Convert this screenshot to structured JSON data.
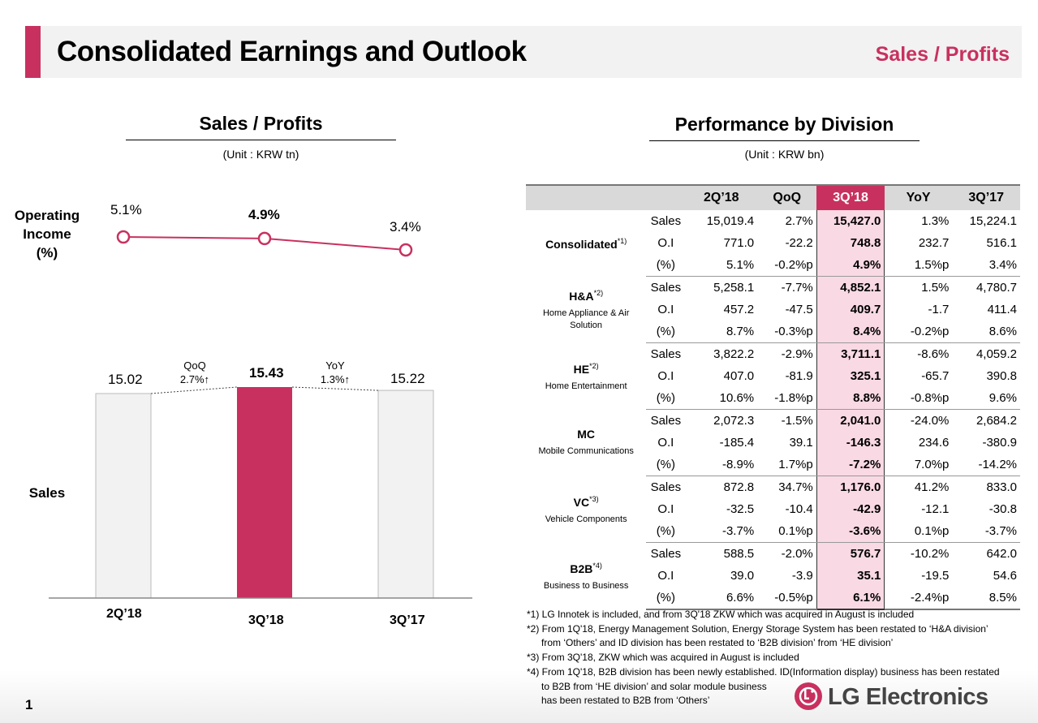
{
  "header": {
    "title": "Consolidated Earnings and Outlook",
    "section": "Sales / Profits"
  },
  "left": {
    "heading": "Sales / Profits",
    "unit": "(Unit : KRW tn)",
    "oi_label": [
      "Operating",
      "Income",
      "(%)"
    ],
    "sales_label": "Sales",
    "annotations": {
      "qoq_label": "QoQ",
      "qoq_value": "2.7%↑",
      "yoy_label": "YoY",
      "yoy_value": "1.3%↑"
    }
  },
  "chart_data": {
    "type": "bar",
    "categories": [
      "2Q’18",
      "3Q’18",
      "3Q’17"
    ],
    "series": [
      {
        "name": "Sales",
        "values": [
          15.02,
          15.43,
          15.22
        ],
        "labels": [
          "15.02",
          "15.43",
          "15.22"
        ],
        "unit": "KRW tn"
      },
      {
        "name": "Operating Income (%)",
        "type": "line",
        "values": [
          5.1,
          4.9,
          3.4
        ],
        "labels": [
          "5.1%",
          "4.9%",
          "3.4%"
        ]
      }
    ],
    "highlight_index": 1,
    "colors": {
      "highlight": "#c8315f",
      "base": "#f2f2f2",
      "line": "#c8315f"
    }
  },
  "right": {
    "heading": "Performance by Division",
    "unit": "(Unit : KRW bn)",
    "columns": [
      "2Q’18",
      "QoQ",
      "3Q’18",
      "YoY",
      "3Q’17"
    ],
    "divisions": [
      {
        "name": "Consolidated",
        "note": "*1)",
        "sub": "",
        "rows": [
          {
            "metric": "Sales",
            "values": [
              "15,019.4",
              "2.7%",
              "15,427.0",
              "1.3%",
              "15,224.1"
            ]
          },
          {
            "metric": "O.I",
            "values": [
              "771.0",
              "-22.2",
              "748.8",
              "232.7",
              "516.1"
            ]
          },
          {
            "metric": "(%)",
            "values": [
              "5.1%",
              "-0.2%p",
              "4.9%",
              "1.5%p",
              "3.4%"
            ]
          }
        ]
      },
      {
        "name": "H&A",
        "note": "*2)",
        "sub": "Home Appliance & Air Solution",
        "rows": [
          {
            "metric": "Sales",
            "values": [
              "5,258.1",
              "-7.7%",
              "4,852.1",
              "1.5%",
              "4,780.7"
            ]
          },
          {
            "metric": "O.I",
            "values": [
              "457.2",
              "-47.5",
              "409.7",
              "-1.7",
              "411.4"
            ]
          },
          {
            "metric": "(%)",
            "values": [
              "8.7%",
              "-0.3%p",
              "8.4%",
              "-0.2%p",
              "8.6%"
            ]
          }
        ]
      },
      {
        "name": "HE",
        "note": "*2)",
        "sub": "Home Entertainment",
        "rows": [
          {
            "metric": "Sales",
            "values": [
              "3,822.2",
              "-2.9%",
              "3,711.1",
              "-8.6%",
              "4,059.2"
            ]
          },
          {
            "metric": "O.I",
            "values": [
              "407.0",
              "-81.9",
              "325.1",
              "-65.7",
              "390.8"
            ]
          },
          {
            "metric": "(%)",
            "values": [
              "10.6%",
              "-1.8%p",
              "8.8%",
              "-0.8%p",
              "9.6%"
            ]
          }
        ]
      },
      {
        "name": "MC",
        "note": "",
        "sub": "Mobile Communications",
        "rows": [
          {
            "metric": "Sales",
            "values": [
              "2,072.3",
              "-1.5%",
              "2,041.0",
              "-24.0%",
              "2,684.2"
            ]
          },
          {
            "metric": "O.I",
            "values": [
              "-185.4",
              "39.1",
              "-146.3",
              "234.6",
              "-380.9"
            ]
          },
          {
            "metric": "(%)",
            "values": [
              "-8.9%",
              "1.7%p",
              "-7.2%",
              "7.0%p",
              "-14.2%"
            ]
          }
        ]
      },
      {
        "name": "VC",
        "note": "*3)",
        "sub": "Vehicle Components",
        "rows": [
          {
            "metric": "Sales",
            "values": [
              "872.8",
              "34.7%",
              "1,176.0",
              "41.2%",
              "833.0"
            ]
          },
          {
            "metric": "O.I",
            "values": [
              "-32.5",
              "-10.4",
              "-42.9",
              "-12.1",
              "-30.8"
            ]
          },
          {
            "metric": "(%)",
            "values": [
              "-3.7%",
              "0.1%p",
              "-3.6%",
              "0.1%p",
              "-3.7%"
            ]
          }
        ]
      },
      {
        "name": "B2B",
        "note": "*4)",
        "sub": "Business to Business",
        "rows": [
          {
            "metric": "Sales",
            "values": [
              "588.5",
              "-2.0%",
              "576.7",
              "-10.2%",
              "642.0"
            ]
          },
          {
            "metric": "O.I",
            "values": [
              "39.0",
              "-3.9",
              "35.1",
              "-19.5",
              "54.6"
            ]
          },
          {
            "metric": "(%)",
            "values": [
              "6.6%",
              "-0.5%p",
              "6.1%",
              "-2.4%p",
              "8.5%"
            ]
          }
        ]
      }
    ]
  },
  "footnotes": [
    "*1) LG Innotek is included, and from 3Q'18 ZKW which was acquired in August is included",
    "*2) From 1Q'18, Energy Management Solution, Energy Storage System has been restated to ‘H&A division’",
    "from ‘Others’ and ID division has been restated to ‘B2B division’ from ‘HE division’",
    "*3) From 3Q'18, ZKW which was acquired in August is included",
    "*4) From 1Q'18, B2B division has been newly established. ID(Information display) business has been restated",
    "to B2B from ‘HE division’ and solar module business",
    "has been restated to B2B from ‘Others’"
  ],
  "footer": {
    "page": "1",
    "brand": "LG Electronics"
  }
}
